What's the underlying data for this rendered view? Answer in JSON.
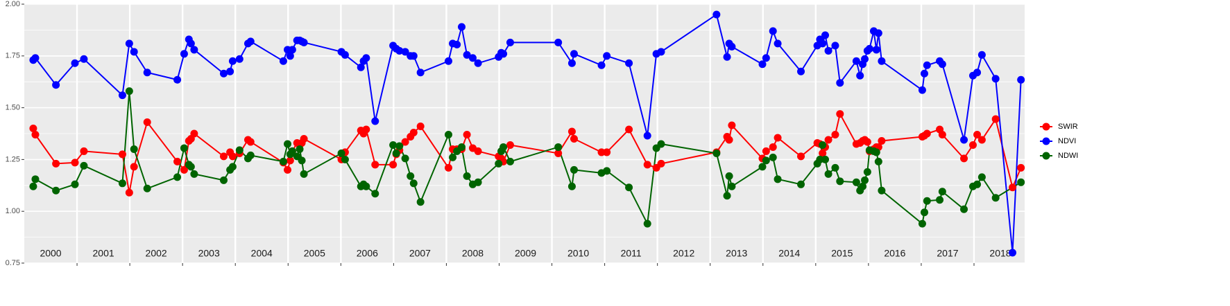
{
  "chart_data": {
    "type": "line",
    "x": [
      2000.17,
      2000.21,
      2000.6,
      2000.96,
      2001.13,
      2001.86,
      2001.99,
      2002.08,
      2002.33,
      2002.9,
      2003.03,
      2003.12,
      2003.16,
      2003.22,
      2003.78,
      2003.9,
      2003.95,
      2004.08,
      2004.24,
      2004.29,
      2004.91,
      2004.99,
      2005.04,
      2005.08,
      2005.17,
      2005.22,
      2005.26,
      2005.3,
      2006.01,
      2006.08,
      2006.38,
      2006.43,
      2006.48,
      2006.65,
      2006.99,
      2007.05,
      2007.11,
      2007.22,
      2007.32,
      2007.38,
      2007.51,
      2008.04,
      2008.12,
      2008.2,
      2008.29,
      2008.39,
      2008.5,
      2008.6,
      2008.99,
      2009.04,
      2009.08,
      2009.21,
      2010.12,
      2010.38,
      2010.42,
      2010.94,
      2011.04,
      2011.46,
      2011.81,
      2011.98,
      2012.07,
      2013.12,
      2013.32,
      2013.36,
      2013.41,
      2013.99,
      2014.06,
      2014.19,
      2014.28,
      2014.72,
      2015.03,
      2015.08,
      2015.13,
      2015.18,
      2015.24,
      2015.37,
      2015.46,
      2015.77,
      2015.84,
      2015.89,
      2015.93,
      2015.98,
      2016.02,
      2016.1,
      2016.15,
      2016.19,
      2016.25,
      2017.02,
      2017.06,
      2017.11,
      2017.35,
      2017.4,
      2017.81,
      2017.98,
      2018.06,
      2018.15,
      2018.41,
      2018.73,
      2018.89
    ],
    "series": [
      {
        "name": "SWIR",
        "color": "#ff0000",
        "values": [
          1.4,
          1.37,
          1.23,
          1.235,
          1.29,
          1.275,
          1.09,
          1.215,
          1.43,
          1.24,
          1.2,
          1.34,
          1.35,
          1.375,
          1.265,
          1.285,
          1.265,
          1.28,
          1.345,
          1.335,
          1.235,
          1.2,
          1.245,
          1.29,
          1.33,
          1.32,
          1.33,
          1.35,
          1.25,
          1.285,
          1.39,
          1.375,
          1.395,
          1.225,
          1.225,
          1.275,
          1.295,
          1.335,
          1.36,
          1.38,
          1.41,
          1.21,
          1.3,
          1.3,
          1.3,
          1.37,
          1.305,
          1.29,
          1.265,
          1.255,
          1.24,
          1.32,
          1.28,
          1.385,
          1.35,
          1.285,
          1.285,
          1.395,
          1.225,
          1.21,
          1.23,
          1.285,
          1.36,
          1.345,
          1.415,
          1.255,
          1.29,
          1.31,
          1.355,
          1.265,
          1.33,
          1.325,
          1.28,
          1.31,
          1.345,
          1.37,
          1.47,
          1.325,
          1.33,
          1.34,
          1.345,
          1.335,
          1.29,
          1.3,
          1.31,
          1.31,
          1.34,
          1.36,
          1.365,
          1.375,
          1.395,
          1.37,
          1.255,
          1.32,
          1.37,
          1.345,
          1.445,
          1.115,
          1.21
        ]
      },
      {
        "name": "NDVI",
        "color": "#0000ff",
        "values": [
          1.73,
          1.74,
          1.61,
          1.715,
          1.735,
          1.56,
          1.81,
          1.77,
          1.67,
          1.635,
          1.76,
          1.83,
          1.81,
          1.78,
          1.665,
          1.675,
          1.725,
          1.735,
          1.81,
          1.82,
          1.725,
          1.78,
          1.75,
          1.78,
          1.825,
          1.825,
          1.82,
          1.815,
          1.77,
          1.755,
          1.695,
          1.725,
          1.74,
          1.435,
          1.8,
          1.785,
          1.775,
          1.77,
          1.75,
          1.75,
          1.67,
          1.725,
          1.81,
          1.805,
          1.89,
          1.755,
          1.74,
          1.715,
          1.745,
          1.765,
          1.76,
          1.815,
          1.815,
          1.715,
          1.76,
          1.705,
          1.75,
          1.715,
          1.365,
          1.76,
          1.77,
          1.95,
          1.745,
          1.81,
          1.795,
          1.71,
          1.74,
          1.87,
          1.81,
          1.675,
          1.8,
          1.83,
          1.81,
          1.85,
          1.775,
          1.8,
          1.62,
          1.725,
          1.655,
          1.71,
          1.735,
          1.775,
          1.785,
          1.87,
          1.78,
          1.86,
          1.725,
          1.585,
          1.665,
          1.705,
          1.725,
          1.71,
          1.345,
          1.655,
          1.67,
          1.755,
          1.64,
          0.8,
          1.635
        ]
      },
      {
        "name": "NDWI",
        "color": "#006400",
        "x": [
          2000.17,
          2000.21,
          2000.6,
          2000.96,
          2001.13,
          2001.86,
          2001.99,
          2002.08,
          2002.33,
          2002.9,
          2003.03,
          2003.12,
          2003.16,
          2003.22,
          2003.78,
          2003.9,
          2003.95,
          2004.08,
          2004.24,
          2004.29,
          2004.91,
          2004.99,
          2005.04,
          2005.08,
          2005.17,
          2005.22,
          2005.26,
          2005.3,
          2006.01,
          2006.08,
          2006.38,
          2006.43,
          2006.48,
          2006.65,
          2006.99,
          2007.05,
          2007.11,
          2007.22,
          2007.32,
          2007.38,
          2007.51,
          2008.04,
          2008.12,
          2008.2,
          2008.29,
          2008.39,
          2008.5,
          2008.6,
          2008.99,
          2009.04,
          2009.08,
          2009.21,
          2010.12,
          2010.38,
          2010.42,
          2010.94,
          2011.04,
          2011.46,
          2011.81,
          2011.98,
          2012.07,
          2013.12,
          2013.32,
          2013.36,
          2013.41,
          2013.99,
          2014.06,
          2014.19,
          2014.28,
          2014.72,
          2015.03,
          2015.08,
          2015.13,
          2015.18,
          2015.24,
          2015.37,
          2015.46,
          2015.77,
          2015.84,
          2015.89,
          2015.93,
          2015.98,
          2016.02,
          2016.1,
          2016.15,
          2016.19,
          2016.25,
          2017.02,
          2017.06,
          2017.11,
          2017.35,
          2017.4,
          2017.81,
          2017.98,
          2018.06,
          2018.15,
          2018.41,
          2018.89
        ],
        "values": [
          1.12,
          1.155,
          1.1,
          1.13,
          1.22,
          1.135,
          1.58,
          1.3,
          1.11,
          1.165,
          1.305,
          1.225,
          1.215,
          1.18,
          1.15,
          1.2,
          1.215,
          1.295,
          1.255,
          1.27,
          1.24,
          1.325,
          1.275,
          1.29,
          1.265,
          1.3,
          1.245,
          1.18,
          1.28,
          1.25,
          1.12,
          1.13,
          1.12,
          1.085,
          1.32,
          1.28,
          1.315,
          1.255,
          1.17,
          1.135,
          1.045,
          1.37,
          1.26,
          1.29,
          1.31,
          1.17,
          1.13,
          1.14,
          1.23,
          1.29,
          1.31,
          1.24,
          1.31,
          1.12,
          1.2,
          1.185,
          1.195,
          1.115,
          0.94,
          1.305,
          1.325,
          1.28,
          1.075,
          1.17,
          1.12,
          1.215,
          1.245,
          1.26,
          1.155,
          1.13,
          1.23,
          1.25,
          1.32,
          1.25,
          1.18,
          1.21,
          1.145,
          1.14,
          1.1,
          1.12,
          1.15,
          1.19,
          1.295,
          1.29,
          1.285,
          1.24,
          1.1,
          0.94,
          0.995,
          1.05,
          1.055,
          1.095,
          1.01,
          1.12,
          1.13,
          1.165,
          1.065,
          1.14
        ]
      }
    ],
    "xlim": [
      2000,
      2018.96
    ],
    "xgrid": [
      2001,
      2002,
      2003,
      2004,
      2005,
      2006,
      2007,
      2008,
      2009,
      2010,
      2011,
      2012,
      2013,
      2014,
      2015,
      2016,
      2017,
      2018
    ],
    "xticks": [
      {
        "value": 2000.5,
        "label": "2000"
      },
      {
        "value": 2001.5,
        "label": "2001"
      },
      {
        "value": 2002.5,
        "label": "2002"
      },
      {
        "value": 2003.5,
        "label": "2003"
      },
      {
        "value": 2004.5,
        "label": "2004"
      },
      {
        "value": 2005.5,
        "label": "2005"
      },
      {
        "value": 2006.5,
        "label": "2006"
      },
      {
        "value": 2007.5,
        "label": "2007"
      },
      {
        "value": 2008.5,
        "label": "2008"
      },
      {
        "value": 2009.5,
        "label": "2009"
      },
      {
        "value": 2010.5,
        "label": "2010"
      },
      {
        "value": 2011.5,
        "label": "2011"
      },
      {
        "value": 2012.5,
        "label": "2012"
      },
      {
        "value": 2013.5,
        "label": "2013"
      },
      {
        "value": 2014.5,
        "label": "2014"
      },
      {
        "value": 2015.5,
        "label": "2015"
      },
      {
        "value": 2016.5,
        "label": "2016"
      },
      {
        "value": 2017.5,
        "label": "2017"
      },
      {
        "value": 2018.5,
        "label": "2018"
      }
    ],
    "ylim": [
      0.75,
      2.0
    ],
    "yticks": [
      {
        "value": 0.75,
        "label": "0.75"
      },
      {
        "value": 1,
        "label": "1.00"
      },
      {
        "value": 1.25,
        "label": "1.25"
      },
      {
        "value": 1.5,
        "label": "1.50"
      },
      {
        "value": 1.75,
        "label": "1.75"
      },
      {
        "value": 2,
        "label": "2.00"
      }
    ],
    "y_minor_grid": [
      0.875,
      1.125,
      1.375,
      1.625,
      1.875
    ],
    "grid": true,
    "legend": "right"
  }
}
